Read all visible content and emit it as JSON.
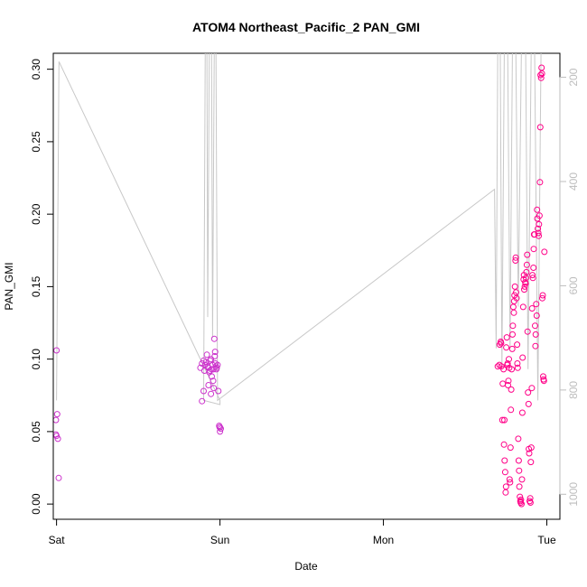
{
  "chart_data": {
    "type": "scatter",
    "title": "ATOM4 Northeast_Pacific_2 PAN_GMI",
    "xlabel": "Date",
    "ylabel": "PAN_GMI",
    "xlim": [
      -0.02,
      3.08
    ],
    "ylim": [
      -0.0105,
      0.311
    ],
    "x_ticks": [
      {
        "value": 0,
        "label": "Sat"
      },
      {
        "value": 1,
        "label": "Sun"
      },
      {
        "value": 2,
        "label": "Mon"
      },
      {
        "value": 3,
        "label": "Tue"
      }
    ],
    "y_ticks": [
      0.0,
      0.05,
      0.1,
      0.15,
      0.2,
      0.25,
      0.3
    ],
    "y_tick_labels": [
      "0.00",
      "0.05",
      "0.10",
      "0.15",
      "0.20",
      "0.25",
      "0.30"
    ],
    "y2lim": [
      1048,
      154
    ],
    "y2_ticks": [
      200,
      400,
      600,
      800,
      1000
    ],
    "y2_tick_labels": [
      "200",
      "400",
      "600",
      "800",
      "1000"
    ],
    "grid": false,
    "colors": {
      "points_early": "#cc33cc",
      "points_late": "#ff0088",
      "pressure_line": "#c8c8c8",
      "right_axis": "#bdbdbd"
    },
    "series": [
      {
        "values": [
          [
            0.0,
            0.106
          ],
          [
            -0.004,
            0.048
          ],
          [
            0.0,
            0.047
          ],
          [
            -0.004,
            0.058
          ],
          [
            0.004,
            0.062
          ],
          [
            0.008,
            0.045
          ],
          [
            0.013,
            0.018
          ],
          [
            0.88,
            0.094
          ],
          [
            0.89,
            0.097
          ],
          [
            0.9,
            0.099
          ],
          [
            0.905,
            0.092
          ],
          [
            0.91,
            0.096
          ],
          [
            0.915,
            0.098
          ],
          [
            0.92,
            0.103
          ],
          [
            0.925,
            0.095
          ],
          [
            0.928,
            0.094
          ],
          [
            0.93,
            0.082
          ],
          [
            0.935,
            0.091
          ],
          [
            0.938,
            0.092
          ],
          [
            0.94,
            0.099
          ],
          [
            0.945,
            0.1
          ],
          [
            0.948,
            0.093
          ],
          [
            0.95,
            0.088
          ],
          [
            0.955,
            0.096
          ],
          [
            0.958,
            0.085
          ],
          [
            0.96,
            0.093
          ],
          [
            0.962,
            0.08
          ],
          [
            0.965,
            0.114
          ],
          [
            0.968,
            0.102
          ],
          [
            0.97,
            0.105
          ],
          [
            0.972,
            0.097
          ],
          [
            0.975,
            0.095
          ],
          [
            0.978,
            0.093
          ],
          [
            0.98,
            0.094
          ],
          [
            0.89,
            0.071
          ],
          [
            0.9,
            0.078
          ],
          [
            0.945,
            0.076
          ],
          [
            0.985,
            0.096
          ],
          [
            0.99,
            0.078
          ],
          [
            0.995,
            0.054
          ],
          [
            1.0,
            0.053
          ],
          [
            1.005,
            0.052
          ],
          [
            1.0,
            0.05
          ],
          [
            0.998,
            0.053
          ]
        ]
      },
      {
        "values": [
          [
            2.7,
            0.095
          ],
          [
            2.71,
            0.096
          ],
          [
            2.712,
            0.11
          ],
          [
            2.718,
            0.112
          ],
          [
            2.72,
            0.111
          ],
          [
            2.722,
            0.095
          ],
          [
            2.728,
            0.058
          ],
          [
            2.73,
            0.083
          ],
          [
            2.735,
            0.093
          ],
          [
            2.738,
            0.041
          ],
          [
            2.74,
            0.058
          ],
          [
            2.742,
            0.03
          ],
          [
            2.745,
            0.022
          ],
          [
            2.748,
            0.008
          ],
          [
            2.75,
            0.012
          ],
          [
            2.752,
            0.108
          ],
          [
            2.755,
            0.115
          ],
          [
            2.758,
            0.096
          ],
          [
            2.76,
            0.097
          ],
          [
            2.762,
            0.082
          ],
          [
            2.765,
            0.085
          ],
          [
            2.768,
            0.1
          ],
          [
            2.77,
            0.094
          ],
          [
            2.772,
            0.017
          ],
          [
            2.775,
            0.015
          ],
          [
            2.778,
            0.039
          ],
          [
            2.78,
            0.065
          ],
          [
            2.782,
            0.079
          ],
          [
            2.785,
            0.093
          ],
          [
            2.788,
            0.107
          ],
          [
            2.79,
            0.117
          ],
          [
            2.792,
            0.123
          ],
          [
            2.795,
            0.136
          ],
          [
            2.798,
            0.132
          ],
          [
            2.8,
            0.14
          ],
          [
            2.802,
            0.144
          ],
          [
            2.805,
            0.15
          ],
          [
            2.808,
            0.168
          ],
          [
            2.81,
            0.17
          ],
          [
            2.812,
            0.146
          ],
          [
            2.815,
            0.142
          ],
          [
            2.818,
            0.11
          ],
          [
            2.82,
            0.097
          ],
          [
            2.822,
            0.094
          ],
          [
            2.825,
            0.045
          ],
          [
            2.828,
            0.03
          ],
          [
            2.83,
            0.023
          ],
          [
            2.832,
            0.012
          ],
          [
            2.835,
            0.005
          ],
          [
            2.838,
            0.002
          ],
          [
            2.84,
            0.001
          ],
          [
            2.842,
            0.003
          ],
          [
            2.845,
            0.0
          ],
          [
            2.848,
            0.017
          ],
          [
            2.85,
            0.063
          ],
          [
            2.852,
            0.101
          ],
          [
            2.855,
            0.136
          ],
          [
            2.858,
            0.155
          ],
          [
            2.86,
            0.158
          ],
          [
            2.862,
            0.148
          ],
          [
            2.865,
            0.15
          ],
          [
            2.868,
            0.153
          ],
          [
            2.87,
            0.152
          ],
          [
            2.872,
            0.156
          ],
          [
            2.875,
            0.16
          ],
          [
            2.878,
            0.165
          ],
          [
            2.88,
            0.172
          ],
          [
            2.882,
            0.119
          ],
          [
            2.885,
            0.077
          ],
          [
            2.888,
            0.069
          ],
          [
            2.89,
            0.038
          ],
          [
            2.892,
            0.035
          ],
          [
            2.895,
            0.002
          ],
          [
            2.898,
            0.004
          ],
          [
            2.9,
            0.001
          ],
          [
            2.902,
            0.029
          ],
          [
            2.905,
            0.039
          ],
          [
            2.908,
            0.08
          ],
          [
            2.91,
            0.135
          ],
          [
            2.912,
            0.158
          ],
          [
            2.915,
            0.156
          ],
          [
            2.918,
            0.163
          ],
          [
            2.92,
            0.176
          ],
          [
            2.922,
            0.186
          ],
          [
            2.925,
            0.186
          ],
          [
            2.928,
            0.123
          ],
          [
            2.93,
            0.109
          ],
          [
            2.932,
            0.117
          ],
          [
            2.935,
            0.138
          ],
          [
            2.938,
            0.13
          ],
          [
            2.94,
            0.203
          ],
          [
            2.942,
            0.197
          ],
          [
            2.945,
            0.19
          ],
          [
            2.948,
            0.187
          ],
          [
            2.95,
            0.185
          ],
          [
            2.952,
            0.193
          ],
          [
            2.955,
            0.199
          ],
          [
            2.958,
            0.222
          ],
          [
            2.96,
            0.26
          ],
          [
            2.962,
            0.296
          ],
          [
            2.965,
            0.294
          ],
          [
            2.968,
            0.301
          ],
          [
            2.97,
            0.297
          ],
          [
            2.972,
            0.142
          ],
          [
            2.975,
            0.144
          ],
          [
            2.978,
            0.088
          ],
          [
            2.98,
            0.086
          ],
          [
            2.982,
            0.085
          ],
          [
            2.985,
            0.174
          ]
        ]
      },
      {
        "axis": "right",
        "values": [
          [
            0.0,
            820
          ],
          [
            0.015,
            170
          ],
          [
            1.0,
            820
          ],
          [
            1.0,
            828
          ],
          [
            0.9,
            820
          ],
          [
            0.91,
            130
          ],
          [
            0.92,
            130
          ],
          [
            0.925,
            660
          ],
          [
            0.935,
            130
          ],
          [
            0.948,
            130
          ],
          [
            0.955,
            700
          ],
          [
            0.965,
            130
          ],
          [
            0.975,
            130
          ],
          [
            0.985,
            820
          ],
          [
            2.68,
            415
          ],
          [
            2.69,
            720
          ],
          [
            2.7,
            130
          ],
          [
            2.715,
            130
          ],
          [
            2.725,
            760
          ],
          [
            2.74,
            130
          ],
          [
            2.76,
            130
          ],
          [
            2.775,
            720
          ],
          [
            2.79,
            130
          ],
          [
            2.81,
            130
          ],
          [
            2.825,
            640
          ],
          [
            2.845,
            130
          ],
          [
            2.87,
            130
          ],
          [
            2.885,
            760
          ],
          [
            2.905,
            130
          ],
          [
            2.925,
            130
          ],
          [
            2.945,
            820
          ],
          [
            2.965,
            130
          ],
          [
            3.0,
            130
          ]
        ]
      }
    ]
  }
}
